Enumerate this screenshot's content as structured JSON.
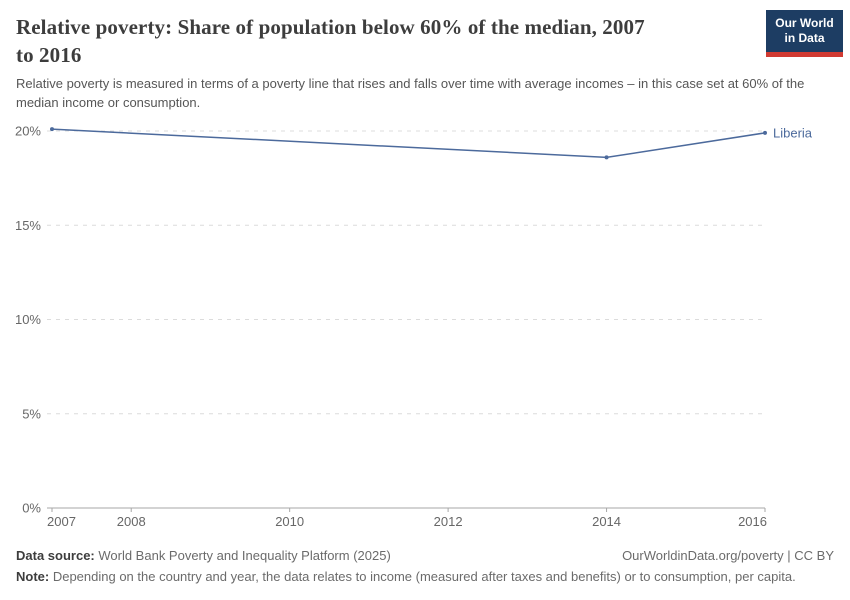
{
  "header": {
    "title": "Relative poverty: Share of population below 60% of the median, 2007 to 2016",
    "title_lines": [
      "Relative poverty: Share of population below 60% of the median, 2007",
      "to 2016"
    ],
    "subtitle": "Relative poverty is measured in terms of a poverty line that rises and falls over time with average incomes – in this case set at 60% of the median income or consumption.",
    "logo": {
      "line1": "Our World",
      "line2": "in Data",
      "bg_color": "#1d3d63",
      "accent_color": "#d13a32"
    }
  },
  "chart_data": {
    "type": "line",
    "x": [
      2007,
      2014,
      2016
    ],
    "series": [
      {
        "name": "Liberia",
        "color": "#4c6a9c",
        "values": [
          20.1,
          18.6,
          19.9
        ]
      }
    ],
    "x_tick_labels": [
      "2007",
      "2008",
      "2010",
      "2012",
      "2014",
      "2016"
    ],
    "x_tick_years": [
      2007,
      2008,
      2010,
      2012,
      2014,
      2016
    ],
    "y_ticks": [
      0,
      5,
      10,
      15,
      20
    ],
    "y_tick_suffix": "%",
    "xlim": [
      2007,
      2016
    ],
    "ylim": [
      0,
      20
    ],
    "grid": "horizontal-dashed",
    "legend": "line-end-label",
    "grid_color": "#dcdcdc",
    "axis_color": "#a7a7a7"
  },
  "footer": {
    "datasource_label": "Data source:",
    "datasource_value": " World Bank Poverty and Inequality Platform (2025)",
    "rights": "OurWorldinData.org/poverty | CC BY",
    "note_label": "Note:",
    "note_value": " Depending on the country and year, the data relates to income (measured after taxes and benefits) or to consumption, per capita."
  }
}
